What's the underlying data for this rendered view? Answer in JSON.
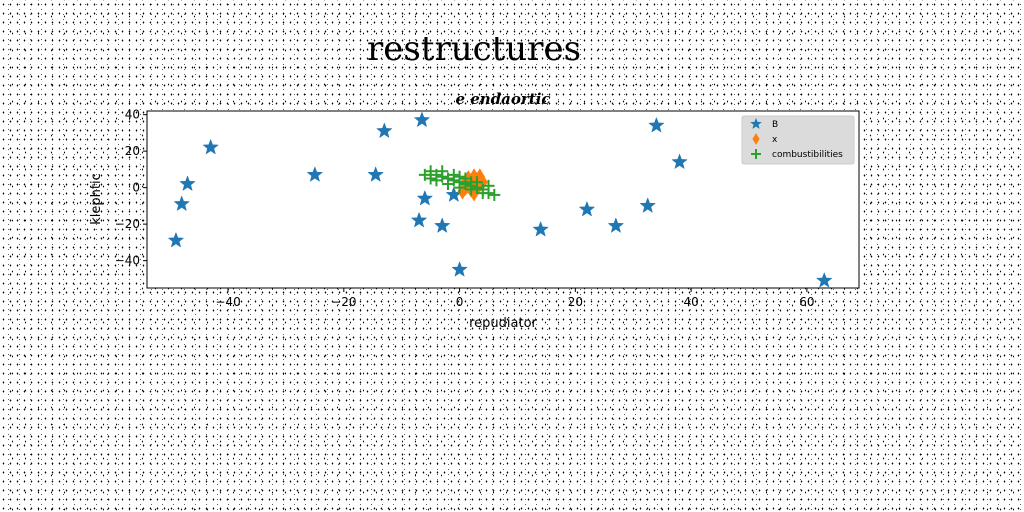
{
  "chart_data": {
    "type": "scatter",
    "suptitle": "restructures",
    "title": "e endaortic",
    "xlabel": "repudiator",
    "ylabel": "klephtic",
    "xlim": [
      -54,
      69
    ],
    "ylim": [
      -55,
      42
    ],
    "xticks": [
      -40,
      -20,
      0,
      20,
      40,
      60
    ],
    "yticks": [
      -40,
      -20,
      0,
      20,
      40
    ],
    "grid": false,
    "legend_position": "top-right",
    "series": [
      {
        "name": "B",
        "marker": "star",
        "color": "#1f77b4",
        "points": [
          [
            -43,
            22
          ],
          [
            -47,
            2
          ],
          [
            -48,
            -9
          ],
          [
            -49,
            -29
          ],
          [
            -25,
            7
          ],
          [
            -14.5,
            7
          ],
          [
            -13,
            31
          ],
          [
            -6.5,
            37
          ],
          [
            -6,
            -6
          ],
          [
            -7,
            -18
          ],
          [
            -3,
            -21
          ],
          [
            -1,
            -4
          ],
          [
            0,
            -45
          ],
          [
            14,
            -23
          ],
          [
            22,
            -12
          ],
          [
            27,
            -21
          ],
          [
            32.5,
            -10
          ],
          [
            34,
            34
          ],
          [
            38,
            14
          ],
          [
            63,
            -51
          ]
        ]
      },
      {
        "name": "x",
        "marker": "thin_diamond",
        "color": "#ff7f0e",
        "points": [
          [
            0.5,
            -2
          ],
          [
            1,
            3
          ],
          [
            1.5,
            5
          ],
          [
            2,
            2
          ],
          [
            2,
            -1
          ],
          [
            2.5,
            6
          ],
          [
            3,
            4
          ],
          [
            3,
            0
          ],
          [
            3.5,
            2
          ],
          [
            4,
            3
          ],
          [
            1,
            0
          ],
          [
            2.5,
            -3
          ],
          [
            3.5,
            6
          ],
          [
            1.5,
            1
          ]
        ]
      },
      {
        "name": "combustibilities",
        "marker": "plus",
        "color": "#2ca02c",
        "points": [
          [
            -5,
            9
          ],
          [
            -4,
            7
          ],
          [
            -3,
            6
          ],
          [
            -2,
            5
          ],
          [
            -1,
            4
          ],
          [
            0,
            3
          ],
          [
            1,
            2
          ],
          [
            2,
            1
          ],
          [
            3,
            0
          ],
          [
            4,
            -1
          ],
          [
            5,
            -3
          ],
          [
            -4,
            4
          ],
          [
            -2,
            2
          ],
          [
            0,
            0
          ],
          [
            2,
            -1
          ],
          [
            4,
            -3
          ],
          [
            -3,
            9
          ],
          [
            -1,
            7
          ],
          [
            1,
            5
          ],
          [
            3,
            3
          ],
          [
            5,
            1
          ],
          [
            -5,
            5
          ],
          [
            6,
            -4
          ],
          [
            -6,
            7
          ],
          [
            0,
            6
          ],
          [
            2,
            3
          ]
        ]
      }
    ]
  }
}
